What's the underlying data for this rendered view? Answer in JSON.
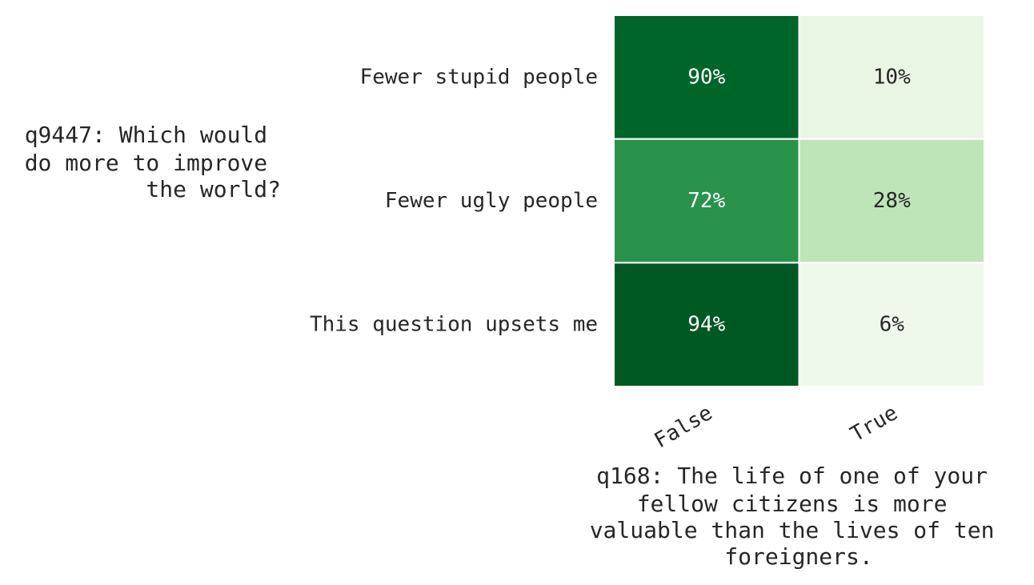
{
  "chart_data": {
    "type": "heatmap",
    "ylabel_lines": [
      "q9447: Which would",
      "do more to improve",
      "the world?"
    ],
    "xlabel_lines": [
      "q168: The life of one of your",
      "fellow citizens is more",
      "valuable than the lives of ten",
      "foreigners."
    ],
    "rows": [
      "Fewer stupid people",
      "Fewer ugly people",
      "This question upsets me"
    ],
    "columns": [
      "False",
      "True"
    ],
    "values": [
      [
        90,
        10
      ],
      [
        72,
        28
      ],
      [
        94,
        6
      ]
    ],
    "cell_labels": [
      [
        "90%",
        "10%"
      ],
      [
        "72%",
        "28%"
      ],
      [
        "94%",
        "6%"
      ]
    ],
    "colormap": "Greens",
    "color_range": [
      0,
      100
    ],
    "colors": {
      "high": "#00441b",
      "low": "#f7fcf5",
      "dark_text": "#262626",
      "light_text": "#ffffff",
      "grid_line": "#ffffff"
    }
  }
}
